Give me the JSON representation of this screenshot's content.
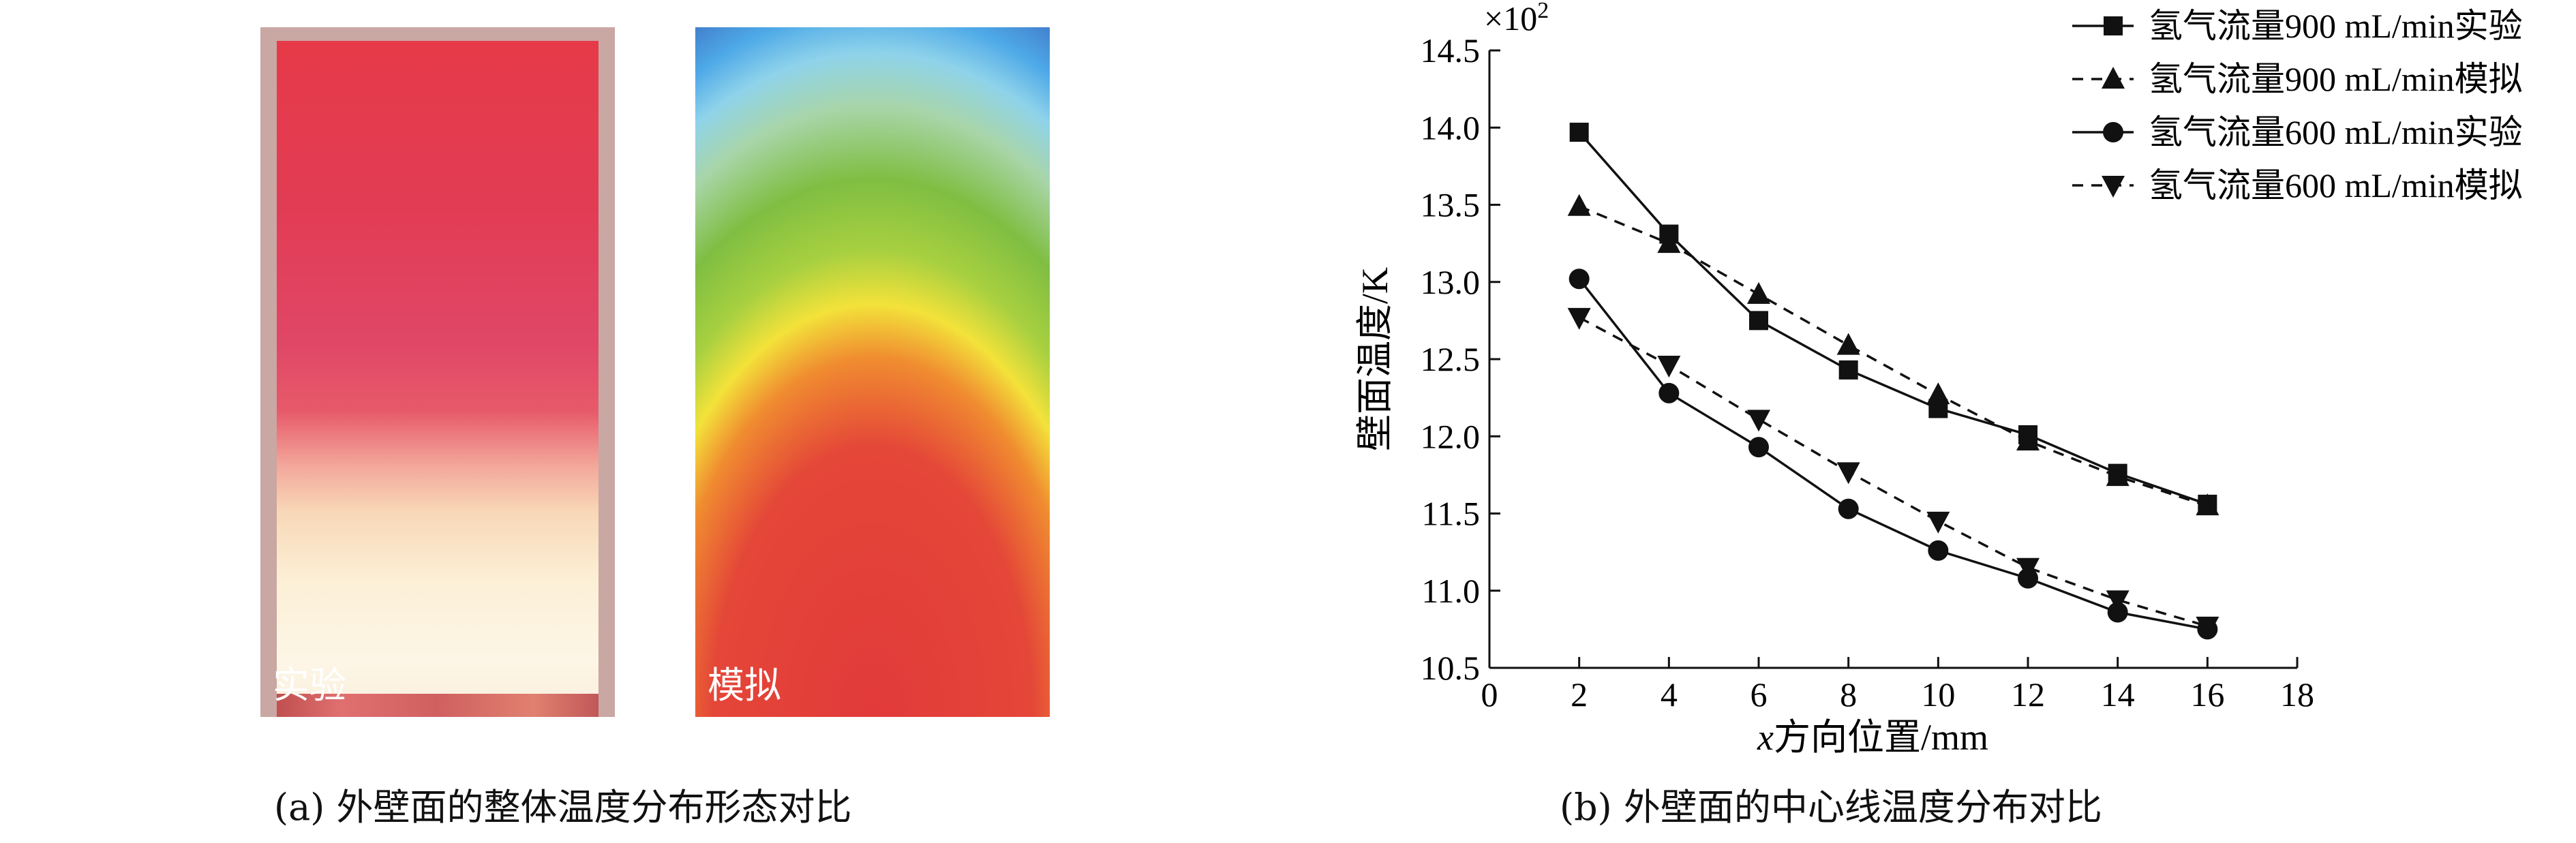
{
  "panel_a": {
    "label_experiment": "实验",
    "label_simulation": "模拟",
    "caption": "(a) 外壁面的整体温度分布形态对比"
  },
  "panel_b": {
    "caption": "(b) 外壁面的中心线温度分布对比"
  },
  "chart_data": {
    "type": "line",
    "xlabel_italic": "x",
    "xlabel_rest": "方向位置/mm",
    "ylabel": "壁面温度/K",
    "y_multiplier": "×10",
    "y_multiplier_exp": "2",
    "xlim": [
      0,
      18
    ],
    "ylim": [
      10.5,
      14.5
    ],
    "x_ticks": [
      "0",
      "2",
      "4",
      "6",
      "8",
      "10",
      "12",
      "14",
      "16",
      "18"
    ],
    "y_ticks": [
      "10.5",
      "11.0",
      "11.5",
      "12.0",
      "12.5",
      "13.0",
      "13.5",
      "14.0",
      "14.5"
    ],
    "legend_position": "top-right",
    "x": [
      2,
      4,
      6,
      8,
      10,
      12,
      14,
      16
    ],
    "series": [
      {
        "name": "氢气流量900 mL/min实验",
        "marker": "square",
        "line": "solid",
        "values": [
          13.97,
          13.31,
          12.75,
          12.43,
          12.18,
          12.01,
          11.76,
          11.56
        ]
      },
      {
        "name": "氢气流量900 mL/min模拟",
        "marker": "triangle-up",
        "line": "dashed",
        "values": [
          13.49,
          13.25,
          12.92,
          12.59,
          12.27,
          11.97,
          11.74,
          11.55
        ]
      },
      {
        "name": "氢气流量600 mL/min实验",
        "marker": "circle",
        "line": "solid",
        "values": [
          13.02,
          12.28,
          11.93,
          11.53,
          11.26,
          11.08,
          10.86,
          10.75
        ]
      },
      {
        "name": "氢气流量600 mL/min模拟",
        "marker": "triangle-down",
        "line": "dashed",
        "values": [
          12.77,
          12.46,
          12.11,
          11.77,
          11.45,
          11.15,
          10.94,
          10.77
        ]
      }
    ]
  }
}
